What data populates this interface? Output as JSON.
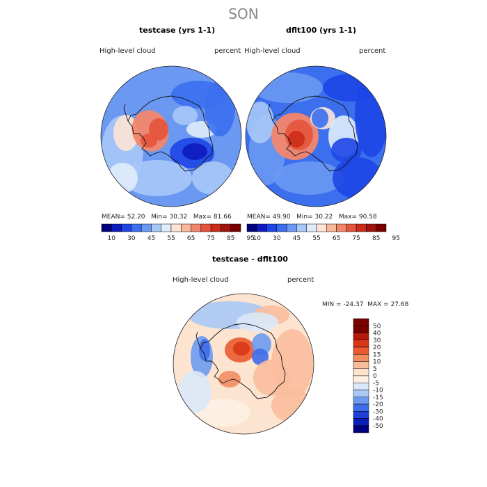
{
  "season": "SON",
  "colors": {
    "abs_scale": [
      "#00007d",
      "#0e1bbf",
      "#1e46e6",
      "#3b6fee",
      "#6a98f3",
      "#a8c8f8",
      "#e0ecfb",
      "#fde5d6",
      "#f9b89a",
      "#f2866a",
      "#e6543c",
      "#cc2c1a",
      "#a0160c",
      "#7a0000"
    ],
    "diff_scale": [
      "#7a0000",
      "#b51a0c",
      "#d83616",
      "#ea5a2e",
      "#f38d62",
      "#f9bc9c",
      "#fde2cc",
      "#fdf0e2",
      "#dbe8f8",
      "#a9c8f5",
      "#6d9af0",
      "#3f6ce8",
      "#1e3fd8",
      "#0a1db4",
      "#00007d"
    ],
    "map_base_abs": "#6b98f1",
    "map_base_diff": "#fde4d0"
  },
  "panels": [
    {
      "title": "testcase (yrs 1-1)",
      "variable": "High-level cloud",
      "units": "percent",
      "stats": {
        "mean_label": "MEAN=",
        "mean": "52.20",
        "min_label": "Min=",
        "min": "30.32",
        "max_label": "Max=",
        "max": "81.66"
      }
    },
    {
      "title": "dflt100 (yrs 1-1)",
      "variable": "High-level cloud",
      "units": "percent",
      "stats": {
        "mean_label": "MEAN=",
        "mean": "49.90",
        "min_label": "Min=",
        "min": "30.22",
        "max_label": "Max=",
        "max": "90.58"
      }
    },
    {
      "title": "testcase - dflt100",
      "variable": "High-level cloud",
      "units": "percent",
      "stats": {
        "min_label": "MIN =",
        "min": "-24.37",
        "max_label": "MAX =",
        "max": "27.68"
      }
    }
  ],
  "chart_data": [
    {
      "type": "heatmap",
      "projection": "south-polar-stereographic",
      "title": "testcase (yrs 1-1)",
      "variable": "High-level cloud",
      "units": "percent",
      "mean": 52.2,
      "min": 30.32,
      "max": 81.66,
      "colorbar_ticks": [
        "10",
        "30",
        "45",
        "55",
        "65",
        "75",
        "85",
        "95"
      ],
      "colorbar_orientation": "horizontal"
    },
    {
      "type": "heatmap",
      "projection": "south-polar-stereographic",
      "title": "dflt100 (yrs 1-1)",
      "variable": "High-level cloud",
      "units": "percent",
      "mean": 49.9,
      "min": 30.22,
      "max": 90.58,
      "colorbar_ticks": [
        "10",
        "30",
        "45",
        "55",
        "65",
        "75",
        "85",
        "95"
      ],
      "colorbar_orientation": "horizontal"
    },
    {
      "type": "heatmap",
      "projection": "south-polar-stereographic",
      "title": "testcase - dflt100",
      "variable": "High-level cloud",
      "units": "percent",
      "min": -24.37,
      "max": 27.68,
      "colorbar_ticks": [
        "50",
        "40",
        "30",
        "20",
        "15",
        "10",
        "5",
        "0",
        "-5",
        "-10",
        "-15",
        "-20",
        "-30",
        "-40",
        "-50"
      ],
      "colorbar_orientation": "vertical"
    }
  ]
}
